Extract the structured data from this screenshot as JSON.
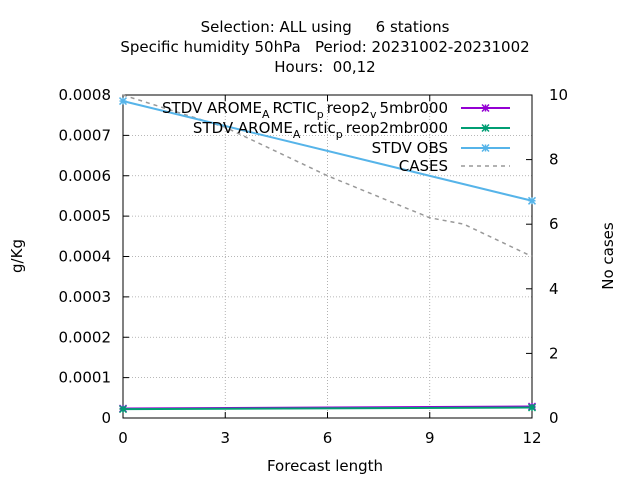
{
  "title_lines": [
    "Selection: ALL using     6 stations",
    "Specific humidity 50hPa   Period: 20231002-20231002",
    "Hours:  00,12"
  ],
  "chart_data": {
    "type": "line",
    "xlabel": "Forecast length",
    "ylabel": "g/Kg",
    "y2label": "No cases",
    "xlim": [
      0,
      12
    ],
    "ylim": [
      0,
      0.0008
    ],
    "y2lim": [
      0,
      10
    ],
    "x_ticks": [
      "0",
      "3",
      "6",
      "9",
      "12"
    ],
    "y_ticks": [
      "0",
      "0.0001",
      "0.0002",
      "0.0003",
      "0.0004",
      "0.0005",
      "0.0006",
      "0.0007",
      "0.0008"
    ],
    "y2_ticks": [
      "0",
      "2",
      "4",
      "6",
      "8",
      "10"
    ],
    "grid": true,
    "legend_position": "top-right",
    "series": [
      {
        "name": "STDV AROME_ARCTIC_preop2_v5mbr000",
        "legend_parts": [
          {
            "t": "STDV AROME",
            "s": false
          },
          {
            "t": "A",
            "s": true
          },
          {
            "t": "RCTIC",
            "s": false
          },
          {
            "t": "p",
            "s": true
          },
          {
            "t": "reop2",
            "s": false
          },
          {
            "t": "v",
            "s": true
          },
          {
            "t": "5mbr000",
            "s": false
          }
        ],
        "color": "#9400d3",
        "axis": "y",
        "marker": "x",
        "x": [
          0,
          12
        ],
        "y": [
          2.35e-05,
          2.85e-05
        ]
      },
      {
        "name": "STDV AROME_Arctic_preop2mbr000",
        "legend_parts": [
          {
            "t": "STDV AROME",
            "s": false
          },
          {
            "t": "A",
            "s": true
          },
          {
            "t": "rctic",
            "s": false
          },
          {
            "t": "p",
            "s": true
          },
          {
            "t": "reop2mbr000",
            "s": false
          }
        ],
        "color": "#009e73",
        "axis": "y",
        "marker": "x",
        "x": [
          0,
          12
        ],
        "y": [
          2.2e-05,
          2.6e-05
        ]
      },
      {
        "name": "STDV OBS",
        "legend_parts": [
          {
            "t": "STDV OBS",
            "s": false
          }
        ],
        "color": "#56b4e9",
        "axis": "y",
        "marker": "x",
        "x": [
          0,
          12
        ],
        "y": [
          0.000785,
          0.000538
        ]
      },
      {
        "name": "CASES",
        "legend_parts": [
          {
            "t": "CASES",
            "s": false
          }
        ],
        "color": "#999999",
        "axis": "y2",
        "dashed": true,
        "x": [
          0,
          3,
          6,
          9,
          10,
          11,
          12
        ],
        "y": [
          10,
          9,
          7.5,
          6.2,
          6,
          5.5,
          5
        ]
      }
    ]
  }
}
